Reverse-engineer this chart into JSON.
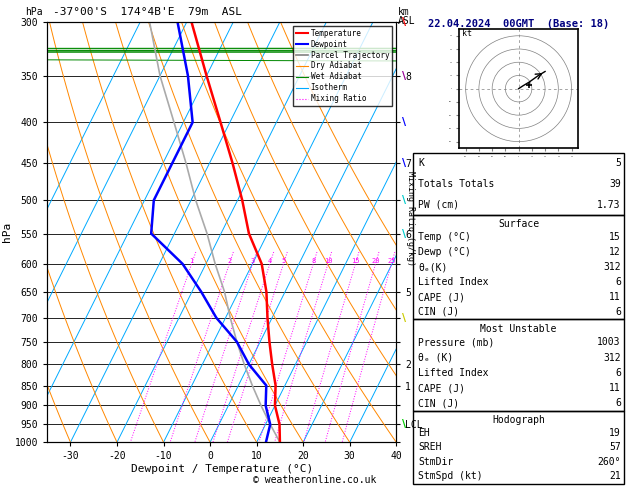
{
  "title_left": "-37°00'S  174°4B'E  79m  ASL",
  "title_right": "22.04.2024  00GMT  (Base: 18)",
  "xlabel": "Dewpoint / Temperature (°C)",
  "ylabel_left": "hPa",
  "copyright": "© weatheronline.co.uk",
  "pressure_levels": [
    300,
    350,
    400,
    450,
    500,
    550,
    600,
    650,
    700,
    750,
    800,
    850,
    900,
    950,
    1000
  ],
  "km_labels": [
    "",
    "8",
    "",
    "7",
    "",
    "6",
    "",
    "5",
    "",
    "",
    "2",
    "1",
    "",
    "LCL",
    ""
  ],
  "mixing_ratio_lines": [
    1,
    2,
    3,
    4,
    5,
    8,
    10,
    15,
    20,
    25
  ],
  "temp_profile": {
    "pressure": [
      1000,
      950,
      900,
      850,
      800,
      750,
      700,
      650,
      600,
      550,
      500,
      450,
      400,
      350,
      300
    ],
    "temp_c": [
      15,
      13,
      10,
      8,
      5,
      2,
      -1,
      -4,
      -8,
      -14,
      -19,
      -25,
      -32,
      -40,
      -49
    ]
  },
  "dewp_profile": {
    "pressure": [
      1000,
      950,
      900,
      850,
      800,
      750,
      700,
      650,
      600,
      550,
      500,
      450,
      400,
      350,
      300
    ],
    "dewp_c": [
      12,
      11,
      8,
      6,
      0,
      -5,
      -12,
      -18,
      -25,
      -35,
      -38,
      -38,
      -38,
      -44,
      -52
    ]
  },
  "parcel_profile": {
    "pressure": [
      1000,
      950,
      900,
      850,
      800,
      750,
      700,
      650,
      600,
      550,
      500,
      450,
      400,
      350,
      300
    ],
    "temp_c": [
      15,
      11,
      7,
      3,
      -1,
      -5,
      -9,
      -13,
      -18,
      -23,
      -29,
      -35,
      -42,
      -50,
      -58
    ]
  },
  "temp_color": "#ff0000",
  "dewp_color": "#0000ff",
  "parcel_color": "#aaaaaa",
  "dry_adiabat_color": "#ff8800",
  "wet_adiabat_color": "#008800",
  "isotherm_color": "#00aaff",
  "mixing_ratio_color": "#ff00ff",
  "skew_factor": 45,
  "xlim": [
    -35,
    40
  ],
  "info_panel": {
    "K": 5,
    "Totals_Totals": 39,
    "PW_cm": "1.73",
    "Surface_Temp": 15,
    "Surface_Dewp": 12,
    "Surface_theta_e": 312,
    "Surface_LI": 6,
    "Surface_CAPE": 11,
    "Surface_CIN": 6,
    "MU_Pressure": 1003,
    "MU_theta_e": 312,
    "MU_LI": 6,
    "MU_CAPE": 11,
    "MU_CIN": 6,
    "Hodo_EH": 19,
    "Hodo_SREH": 57,
    "Hodo_StmDir": "260°",
    "Hodo_StmSpd": 21
  },
  "wind_barb_colors": [
    "#ff0000",
    "#990099",
    "#0000ff",
    "#0000ff",
    "#00cccc",
    "#00cccc",
    "#cccc00",
    "#00cc00"
  ],
  "wind_barb_pressures": [
    300,
    350,
    400,
    450,
    500,
    550,
    700,
    950
  ]
}
